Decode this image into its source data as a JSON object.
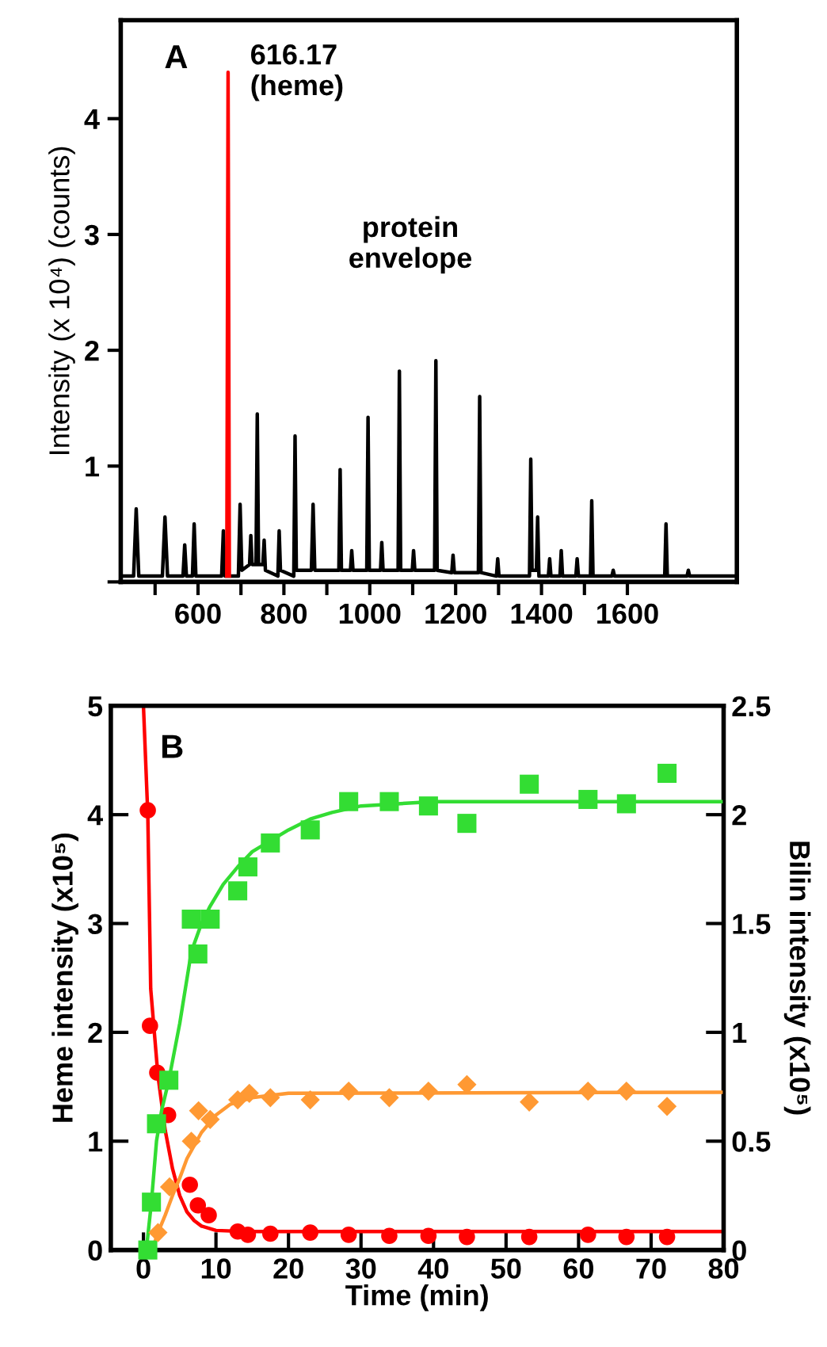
{
  "chart_data": [
    {
      "type": "line",
      "title": "A",
      "ylabel": "Intensity (x 10⁴) (counts)",
      "xlim": [
        420,
        1855
      ],
      "ylim": [
        0,
        4.85
      ],
      "xticks": [
        {
          "value": 500,
          "label": null
        },
        600,
        {
          "value": 700,
          "label": null
        },
        800,
        {
          "value": 900,
          "label": null
        },
        1000,
        {
          "value": 1100,
          "label": null
        },
        1200,
        {
          "value": 1300,
          "label": null
        },
        1400,
        {
          "value": 1500,
          "label": null
        },
        1600
      ],
      "yticks": [
        {
          "value": 0,
          "label": null
        },
        1,
        2,
        3,
        4
      ],
      "grid": false,
      "annotations": [
        {
          "text": "616.17\n(heme)",
          "x": 670,
          "y": 4.4
        },
        "protein\nenvelope"
      ],
      "series": [
        {
          "color": "#000000",
          "x": [
            425,
            450,
            456,
            462,
            517,
            523,
            529,
            565,
            569,
            573,
            587,
            591,
            595,
            655,
            659,
            663,
            694,
            698,
            702,
            720,
            723,
            726,
            735,
            738,
            741,
            751,
            754,
            757,
            786,
            789,
            792,
            823,
            826,
            829,
            864,
            868,
            872,
            928,
            931,
            934,
            955,
            958,
            961,
            993,
            996,
            999,
            1025,
            1028,
            1031,
            1066,
            1069,
            1072,
            1099,
            1102,
            1105,
            1151,
            1154,
            1157,
            1191,
            1194,
            1197,
            1253,
            1256,
            1259,
            1295,
            1298,
            1301,
            1372,
            1375,
            1378,
            1388,
            1391,
            1394,
            1416,
            1419,
            1422,
            1443,
            1446,
            1449,
            1480,
            1483,
            1486,
            1514,
            1517,
            1520,
            1564,
            1567,
            1570,
            1687,
            1690,
            1693,
            1739,
            1742,
            1745,
            1850
          ],
          "values": [
            0.05,
            0.05,
            0.63,
            0.05,
            0.05,
            0.56,
            0.05,
            0.05,
            0.32,
            0.05,
            0.05,
            0.5,
            0.05,
            0.05,
            0.44,
            0.05,
            0.05,
            0.67,
            0.1,
            0.15,
            0.4,
            0.15,
            0.15,
            1.45,
            0.15,
            0.15,
            0.36,
            0.1,
            0.05,
            0.44,
            0.1,
            0.05,
            1.26,
            0.1,
            0.1,
            0.67,
            0.1,
            0.1,
            0.97,
            0.1,
            0.1,
            0.27,
            0.1,
            0.1,
            1.42,
            0.1,
            0.1,
            0.34,
            0.1,
            0.1,
            1.82,
            0.1,
            0.1,
            0.27,
            0.1,
            0.1,
            1.91,
            0.1,
            0.08,
            0.23,
            0.08,
            0.08,
            1.6,
            0.08,
            0.05,
            0.2,
            0.05,
            0.05,
            1.06,
            0.1,
            0.1,
            0.56,
            0.05,
            0.05,
            0.2,
            0.05,
            0.05,
            0.27,
            0.05,
            0.05,
            0.2,
            0.05,
            0.05,
            0.7,
            0.05,
            0.05,
            0.1,
            0.05,
            0.05,
            0.5,
            0.05,
            0.05,
            0.1,
            0.05,
            0.05
          ]
        },
        {
          "color": "#ff0000",
          "x": [
            667,
            670,
            673
          ],
          "values": [
            0.05,
            4.4,
            0.05
          ]
        }
      ]
    },
    {
      "type": "line",
      "title": "B",
      "xlabel": "Time (min)",
      "ylabel": "Heme intensity (x10⁵)",
      "y2label": "Bilin intensity (x10⁵)",
      "xlim": [
        -4.5,
        80
      ],
      "ylim": [
        0,
        5
      ],
      "y2lim": [
        0,
        2.5
      ],
      "xticks": [
        0,
        10,
        20,
        30,
        40,
        50,
        60,
        70,
        80
      ],
      "yticks": [
        0,
        1,
        2,
        3,
        4,
        5
      ],
      "y2ticks": [
        0,
        0.5,
        1,
        1.5,
        2,
        2.5
      ],
      "grid": false,
      "series": [
        {
          "type": "line",
          "color": "#ff0000",
          "line_style": "solid",
          "x": [
            0,
            0.6,
            1,
            2,
            3,
            4,
            5,
            6,
            7,
            8,
            10,
            14,
            80
          ],
          "values": [
            5,
            4.0,
            2.4,
            1.6,
            1.1,
            0.75,
            0.5,
            0.35,
            0.27,
            0.22,
            0.18,
            0.17,
            0.17
          ]
        },
        {
          "type": "scatter",
          "marker": "circle",
          "color": "#ff0000",
          "x": [
            0.6,
            0.9,
            1.9,
            3.4,
            6.4,
            7.5,
            9.0,
            13.0,
            14.4,
            17.5,
            23.0,
            28.3,
            33.9,
            39.3,
            44.6,
            53.2,
            61.3,
            66.6,
            72.2
          ],
          "values": [
            4.04,
            2.06,
            1.63,
            1.24,
            0.6,
            0.41,
            0.32,
            0.17,
            0.14,
            0.15,
            0.16,
            0.14,
            0.13,
            0.13,
            0.12,
            0.12,
            0.14,
            0.12,
            0.12
          ]
        },
        {
          "type": "line",
          "axis": "y2",
          "color": "#33dd33",
          "line_style": "solid",
          "x": [
            0.4,
            1.1,
            1.8,
            2.5,
            3.5,
            5,
            6.6,
            8,
            9.2,
            11,
            13,
            15,
            17.5,
            20,
            23,
            26,
            30,
            35,
            40,
            80
          ],
          "values": [
            0,
            0.22,
            0.5,
            0.64,
            0.78,
            1.04,
            1.37,
            1.5,
            1.58,
            1.68,
            1.76,
            1.83,
            1.88,
            1.93,
            1.98,
            2.01,
            2.04,
            2.05,
            2.06,
            2.06
          ]
        },
        {
          "type": "scatter",
          "axis": "y2",
          "marker": "square",
          "color": "#33dd33",
          "x": [
            0.6,
            1.1,
            1.8,
            3.5,
            6.6,
            7.5,
            9.2,
            13.0,
            14.4,
            17.5,
            23.0,
            28.3,
            33.9,
            39.3,
            44.6,
            53.2,
            61.3,
            66.6,
            72.2
          ],
          "values": [
            0,
            0.22,
            0.58,
            0.78,
            1.52,
            1.36,
            1.52,
            1.65,
            1.76,
            1.87,
            1.93,
            2.06,
            2.06,
            2.04,
            1.96,
            2.14,
            2.07,
            2.05,
            2.19
          ]
        },
        {
          "type": "line",
          "axis": "y2",
          "color": "#ff9933",
          "line_style": "solid",
          "x": [
            1.2,
            2,
            3,
            4,
            5,
            6,
            8,
            10,
            12,
            15,
            20,
            80
          ],
          "values": [
            0,
            0.08,
            0.16,
            0.25,
            0.33,
            0.42,
            0.54,
            0.62,
            0.67,
            0.7,
            0.72,
            0.725
          ]
        },
        {
          "type": "scatter",
          "axis": "y2",
          "marker": "diamond",
          "color": "#ff9933",
          "x": [
            2.0,
            3.6,
            6.6,
            7.6,
            9.2,
            13.0,
            14.6,
            17.5,
            23.0,
            28.3,
            33.9,
            39.3,
            44.6,
            53.2,
            61.3,
            66.6,
            72.2
          ],
          "values": [
            0.08,
            0.29,
            0.5,
            0.64,
            0.6,
            0.69,
            0.72,
            0.7,
            0.69,
            0.73,
            0.7,
            0.73,
            0.76,
            0.68,
            0.73,
            0.73,
            0.66
          ]
        }
      ]
    }
  ]
}
